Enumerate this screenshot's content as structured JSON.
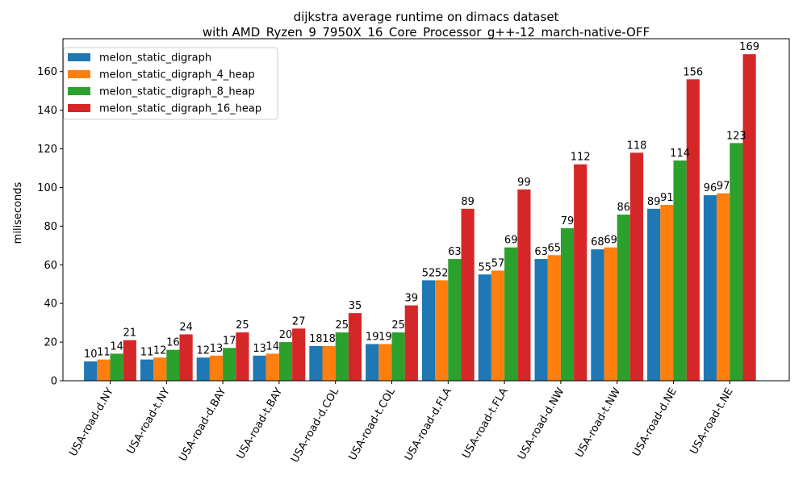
{
  "chart_data": {
    "type": "bar",
    "title_line1": "dijkstra average runtime on dimacs dataset",
    "title_line2": "with AMD_Ryzen_9_7950X_16_Core_Processor_g++-12_march-native-OFF",
    "xlabel": "",
    "ylabel": "miliseconds",
    "ylim": [
      0,
      177
    ],
    "yticks": [
      0,
      20,
      40,
      60,
      80,
      100,
      120,
      140,
      160
    ],
    "legend_position": "upper-left",
    "grid": false,
    "categories": [
      "USA-road-d.NY",
      "USA-road-t.NY",
      "USA-road-d.BAY",
      "USA-road-t.BAY",
      "USA-road-d.COL",
      "USA-road-t.COL",
      "USA-road-d.FLA",
      "USA-road-t.FLA",
      "USA-road-d.NW",
      "USA-road-t.NW",
      "USA-road-d.NE",
      "USA-road-t.NE"
    ],
    "series": [
      {
        "name": "melon_static_digraph",
        "color": "#1f77b4",
        "values": [
          10,
          11,
          12,
          13,
          18,
          19,
          52,
          55,
          63,
          68,
          89,
          96
        ]
      },
      {
        "name": "melon_static_digraph_4_heap",
        "color": "#ff7f0e",
        "values": [
          11,
          12,
          13,
          14,
          18,
          19,
          52,
          57,
          65,
          69,
          91,
          97
        ]
      },
      {
        "name": "melon_static_digraph_8_heap",
        "color": "#2ca02c",
        "values": [
          14,
          16,
          17,
          20,
          25,
          25,
          63,
          69,
          79,
          86,
          114,
          123
        ]
      },
      {
        "name": "melon_static_digraph_16_heap",
        "color": "#d62728",
        "values": [
          21,
          24,
          25,
          27,
          35,
          39,
          89,
          99,
          112,
          118,
          156,
          169
        ]
      }
    ]
  }
}
